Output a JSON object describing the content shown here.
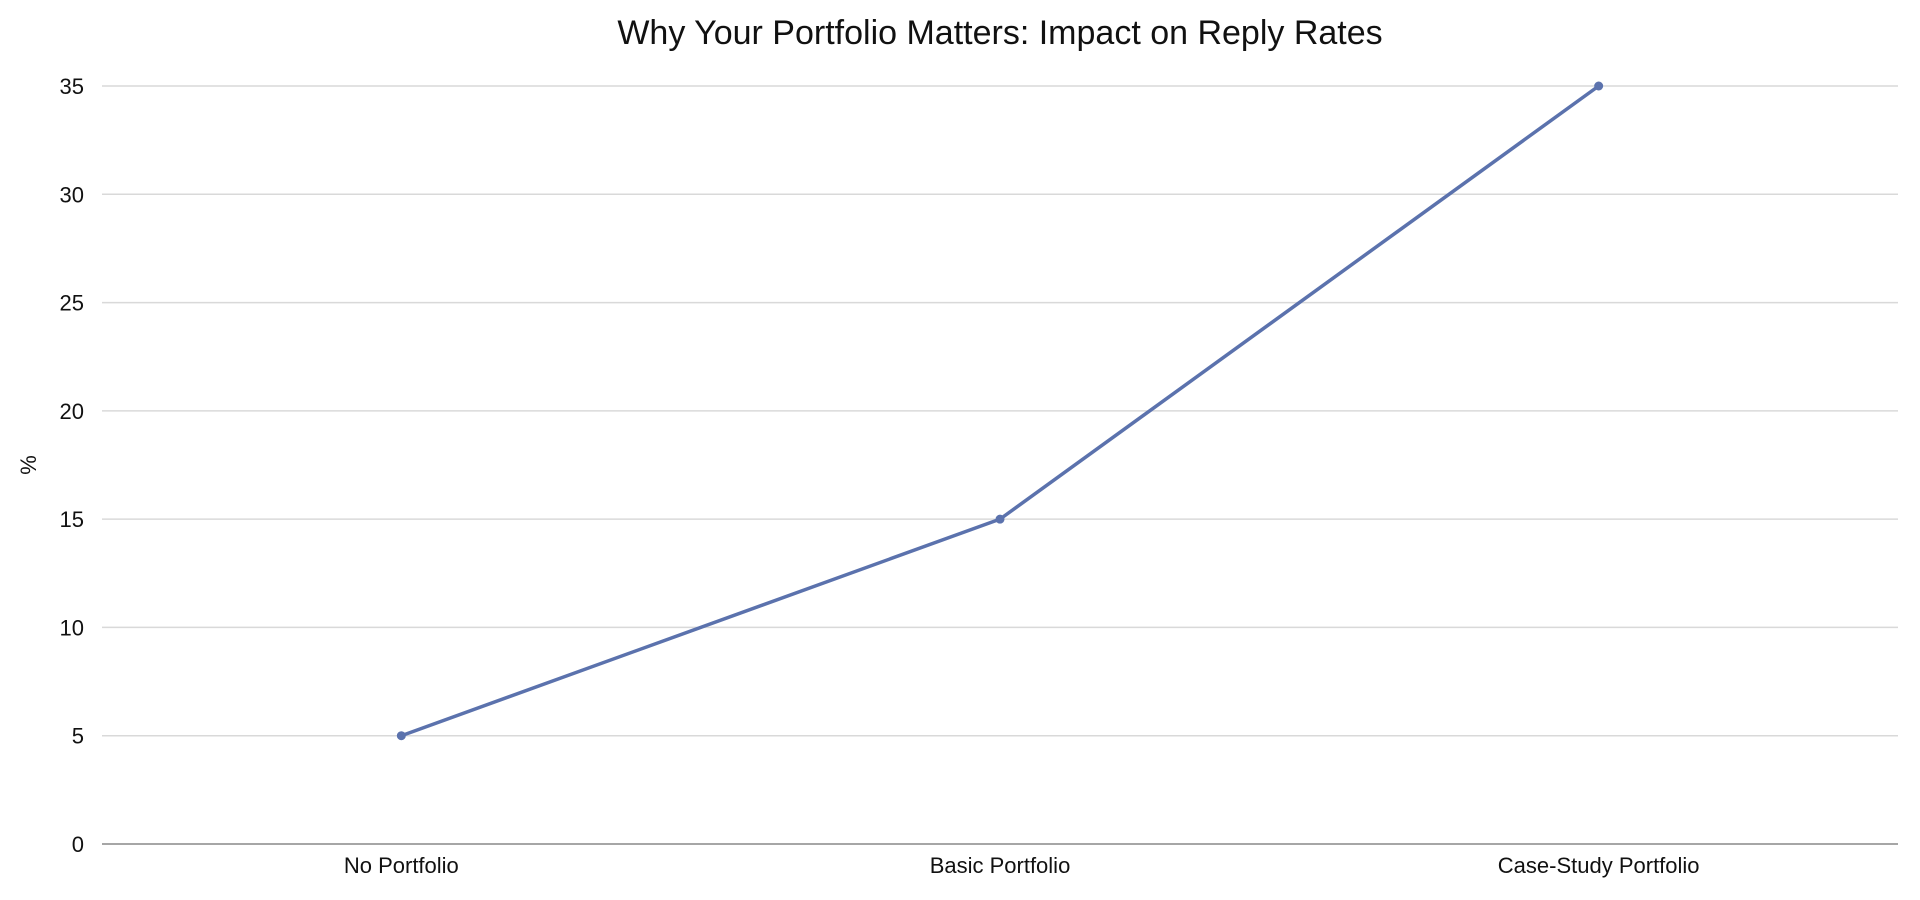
{
  "chart_data": {
    "type": "line",
    "title": "Why Your Portfolio Matters: Impact on Reply Rates",
    "xlabel": "",
    "ylabel": "%",
    "categories": [
      "No Portfolio",
      "Basic Portfolio",
      "Case-Study Portfolio"
    ],
    "series": [
      {
        "values": [
          5,
          15,
          35
        ]
      }
    ],
    "ylim": [
      0,
      35
    ],
    "yticks": [
      0,
      5,
      10,
      15,
      20,
      25,
      30,
      35
    ],
    "grid": true,
    "line_color": "#5b72ad"
  }
}
